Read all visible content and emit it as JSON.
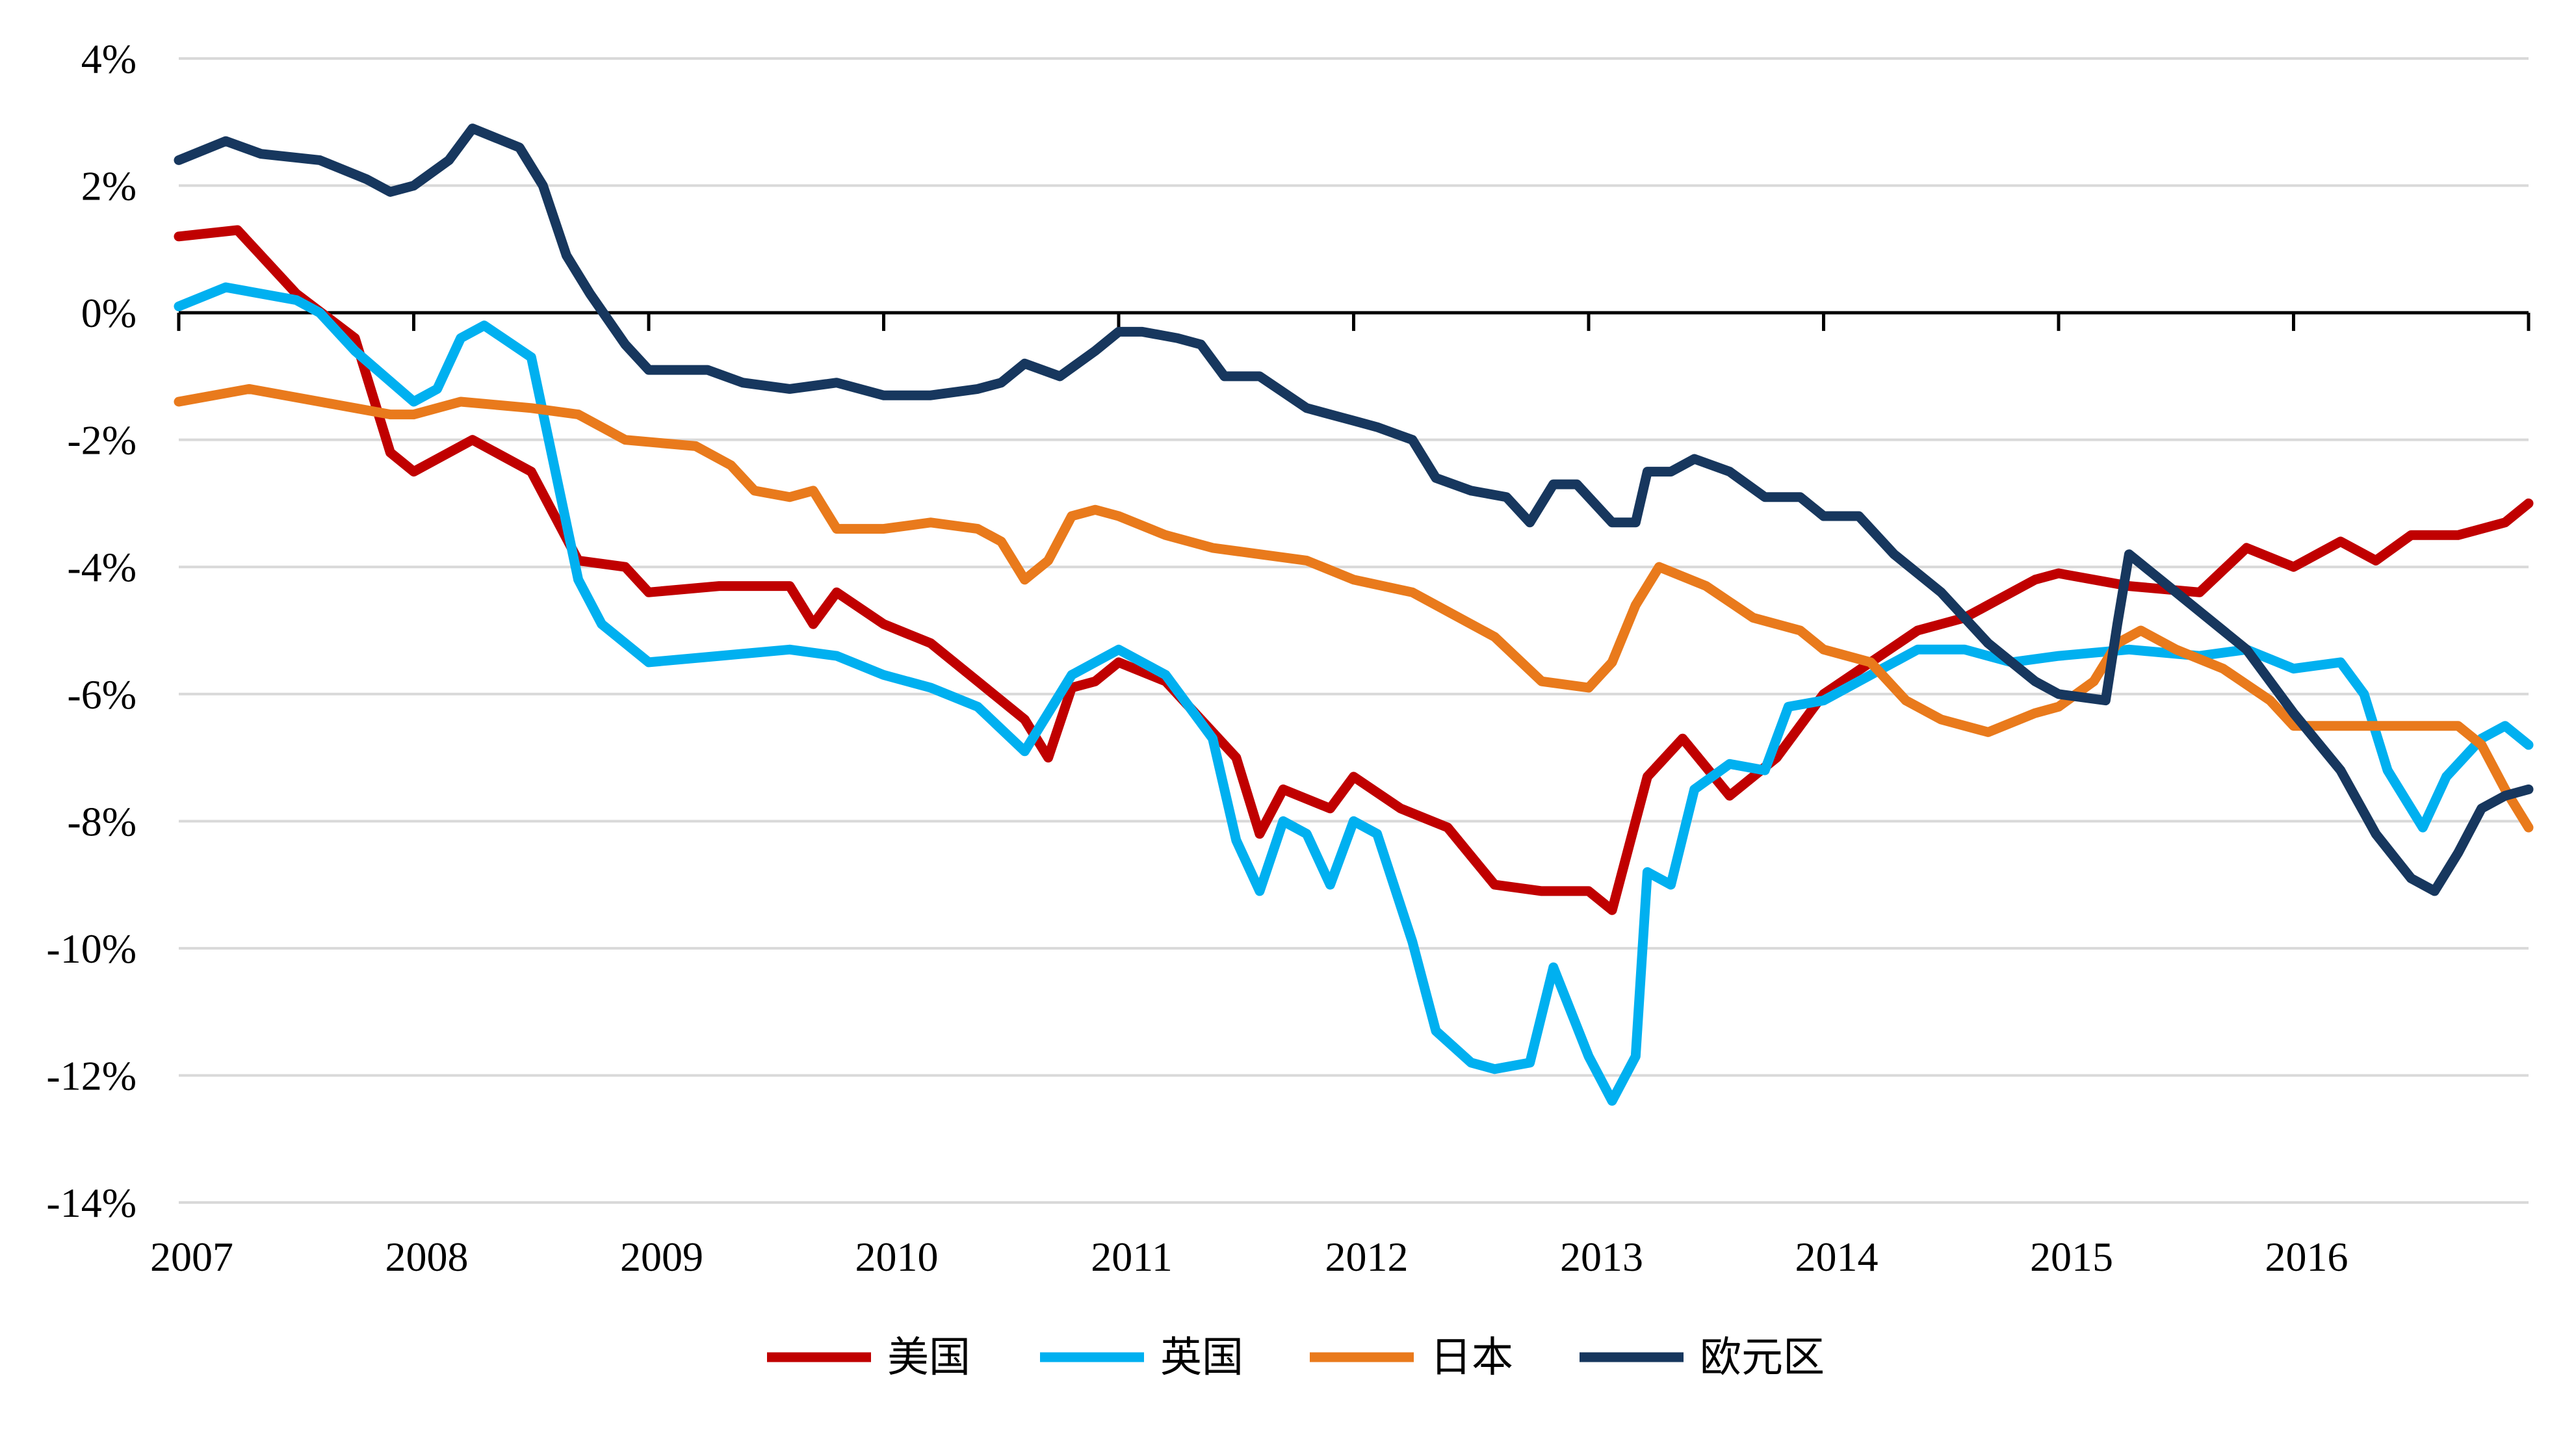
{
  "chart_data": {
    "type": "line",
    "title": "",
    "xlabel": "",
    "ylabel": "",
    "x_range": [
      2007.0,
      2017.0
    ],
    "ylim": [
      -14,
      4
    ],
    "y_ticks": [
      4,
      2,
      0,
      -2,
      -4,
      -6,
      -8,
      -10,
      -12,
      -14
    ],
    "y_tick_labels": [
      "4%",
      "2%",
      "0%",
      "-2%",
      "-4%",
      "-6%",
      "-8%",
      "-10%",
      "-12%",
      "-14%"
    ],
    "x_tick_labels": [
      "2007",
      "2008",
      "2009",
      "2010",
      "2011",
      "2012",
      "2013",
      "2014",
      "2015",
      "2016"
    ],
    "grid": true,
    "legend_position": "bottom-center",
    "series": [
      {
        "name": "美国",
        "color": "#C00000",
        "points": [
          [
            2007.0,
            1.2
          ],
          [
            2007.25,
            1.3
          ],
          [
            2007.5,
            0.3
          ],
          [
            2007.75,
            -0.4
          ],
          [
            2007.9,
            -2.2
          ],
          [
            2008.0,
            -2.5
          ],
          [
            2008.25,
            -2.0
          ],
          [
            2008.5,
            -2.5
          ],
          [
            2008.7,
            -3.9
          ],
          [
            2008.9,
            -4.0
          ],
          [
            2009.0,
            -4.4
          ],
          [
            2009.3,
            -4.3
          ],
          [
            2009.6,
            -4.3
          ],
          [
            2009.7,
            -4.9
          ],
          [
            2009.8,
            -4.4
          ],
          [
            2010.0,
            -4.9
          ],
          [
            2010.2,
            -5.2
          ],
          [
            2010.4,
            -5.8
          ],
          [
            2010.6,
            -6.4
          ],
          [
            2010.7,
            -7.0
          ],
          [
            2010.8,
            -5.9
          ],
          [
            2010.9,
            -5.8
          ],
          [
            2011.0,
            -5.5
          ],
          [
            2011.2,
            -5.8
          ],
          [
            2011.5,
            -7.0
          ],
          [
            2011.6,
            -8.2
          ],
          [
            2011.7,
            -7.5
          ],
          [
            2011.9,
            -7.8
          ],
          [
            2012.0,
            -7.3
          ],
          [
            2012.2,
            -7.8
          ],
          [
            2012.4,
            -8.1
          ],
          [
            2012.6,
            -9.0
          ],
          [
            2012.8,
            -9.1
          ],
          [
            2013.0,
            -9.1
          ],
          [
            2013.1,
            -9.4
          ],
          [
            2013.25,
            -7.3
          ],
          [
            2013.4,
            -6.7
          ],
          [
            2013.6,
            -7.6
          ],
          [
            2013.8,
            -7.0
          ],
          [
            2014.0,
            -6.0
          ],
          [
            2014.2,
            -5.5
          ],
          [
            2014.4,
            -5.0
          ],
          [
            2014.6,
            -4.8
          ],
          [
            2014.9,
            -4.2
          ],
          [
            2015.0,
            -4.1
          ],
          [
            2015.3,
            -4.3
          ],
          [
            2015.6,
            -4.4
          ],
          [
            2015.8,
            -3.7
          ],
          [
            2016.0,
            -4.0
          ],
          [
            2016.2,
            -3.6
          ],
          [
            2016.35,
            -3.9
          ],
          [
            2016.5,
            -3.5
          ],
          [
            2016.7,
            -3.5
          ],
          [
            2016.9,
            -3.3
          ],
          [
            2017.0,
            -3.0
          ]
        ]
      },
      {
        "name": "英国",
        "color": "#00B0F0",
        "points": [
          [
            2007.0,
            0.1
          ],
          [
            2007.2,
            0.4
          ],
          [
            2007.5,
            0.2
          ],
          [
            2007.6,
            0.0
          ],
          [
            2007.75,
            -0.6
          ],
          [
            2008.0,
            -1.4
          ],
          [
            2008.1,
            -1.2
          ],
          [
            2008.2,
            -0.4
          ],
          [
            2008.3,
            -0.2
          ],
          [
            2008.5,
            -0.7
          ],
          [
            2008.7,
            -4.2
          ],
          [
            2008.8,
            -4.9
          ],
          [
            2009.0,
            -5.5
          ],
          [
            2009.3,
            -5.4
          ],
          [
            2009.6,
            -5.3
          ],
          [
            2009.8,
            -5.4
          ],
          [
            2010.0,
            -5.7
          ],
          [
            2010.2,
            -5.9
          ],
          [
            2010.4,
            -6.2
          ],
          [
            2010.6,
            -6.9
          ],
          [
            2010.8,
            -5.7
          ],
          [
            2011.0,
            -5.3
          ],
          [
            2011.2,
            -5.7
          ],
          [
            2011.4,
            -6.7
          ],
          [
            2011.5,
            -8.3
          ],
          [
            2011.6,
            -9.1
          ],
          [
            2011.7,
            -8.0
          ],
          [
            2011.8,
            -8.2
          ],
          [
            2011.9,
            -9.0
          ],
          [
            2012.0,
            -8.0
          ],
          [
            2012.1,
            -8.2
          ],
          [
            2012.25,
            -9.9
          ],
          [
            2012.35,
            -11.3
          ],
          [
            2012.5,
            -11.8
          ],
          [
            2012.6,
            -11.9
          ],
          [
            2012.75,
            -11.8
          ],
          [
            2012.85,
            -10.3
          ],
          [
            2013.0,
            -11.7
          ],
          [
            2013.1,
            -12.4
          ],
          [
            2013.2,
            -11.7
          ],
          [
            2013.25,
            -8.8
          ],
          [
            2013.35,
            -9.0
          ],
          [
            2013.45,
            -7.5
          ],
          [
            2013.6,
            -7.1
          ],
          [
            2013.75,
            -7.2
          ],
          [
            2013.85,
            -6.2
          ],
          [
            2014.0,
            -6.1
          ],
          [
            2014.2,
            -5.7
          ],
          [
            2014.4,
            -5.3
          ],
          [
            2014.6,
            -5.3
          ],
          [
            2014.8,
            -5.5
          ],
          [
            2015.0,
            -5.4
          ],
          [
            2015.3,
            -5.3
          ],
          [
            2015.6,
            -5.4
          ],
          [
            2015.8,
            -5.3
          ],
          [
            2016.0,
            -5.6
          ],
          [
            2016.2,
            -5.5
          ],
          [
            2016.3,
            -6.0
          ],
          [
            2016.4,
            -7.2
          ],
          [
            2016.55,
            -8.1
          ],
          [
            2016.65,
            -7.3
          ],
          [
            2016.8,
            -6.7
          ],
          [
            2016.9,
            -6.5
          ],
          [
            2017.0,
            -6.8
          ]
        ]
      },
      {
        "name": "日本",
        "color": "#E97A1C",
        "points": [
          [
            2007.0,
            -1.4
          ],
          [
            2007.3,
            -1.2
          ],
          [
            2007.6,
            -1.4
          ],
          [
            2007.9,
            -1.6
          ],
          [
            2008.0,
            -1.6
          ],
          [
            2008.2,
            -1.4
          ],
          [
            2008.5,
            -1.5
          ],
          [
            2008.7,
            -1.6
          ],
          [
            2008.9,
            -2.0
          ],
          [
            2009.2,
            -2.1
          ],
          [
            2009.35,
            -2.4
          ],
          [
            2009.45,
            -2.8
          ],
          [
            2009.6,
            -2.9
          ],
          [
            2009.7,
            -2.8
          ],
          [
            2009.8,
            -3.4
          ],
          [
            2010.0,
            -3.4
          ],
          [
            2010.2,
            -3.3
          ],
          [
            2010.4,
            -3.4
          ],
          [
            2010.5,
            -3.6
          ],
          [
            2010.6,
            -4.2
          ],
          [
            2010.7,
            -3.9
          ],
          [
            2010.8,
            -3.2
          ],
          [
            2010.9,
            -3.1
          ],
          [
            2011.0,
            -3.2
          ],
          [
            2011.2,
            -3.5
          ],
          [
            2011.4,
            -3.7
          ],
          [
            2011.6,
            -3.8
          ],
          [
            2011.8,
            -3.9
          ],
          [
            2012.0,
            -4.2
          ],
          [
            2012.25,
            -4.4
          ],
          [
            2012.4,
            -4.7
          ],
          [
            2012.6,
            -5.1
          ],
          [
            2012.8,
            -5.8
          ],
          [
            2013.0,
            -5.9
          ],
          [
            2013.1,
            -5.5
          ],
          [
            2013.2,
            -4.6
          ],
          [
            2013.3,
            -4.0
          ],
          [
            2013.5,
            -4.3
          ],
          [
            2013.7,
            -4.8
          ],
          [
            2013.9,
            -5.0
          ],
          [
            2014.0,
            -5.3
          ],
          [
            2014.2,
            -5.5
          ],
          [
            2014.35,
            -6.1
          ],
          [
            2014.5,
            -6.4
          ],
          [
            2014.7,
            -6.6
          ],
          [
            2014.9,
            -6.3
          ],
          [
            2015.0,
            -6.2
          ],
          [
            2015.15,
            -5.8
          ],
          [
            2015.25,
            -5.2
          ],
          [
            2015.35,
            -5.0
          ],
          [
            2015.5,
            -5.3
          ],
          [
            2015.7,
            -5.6
          ],
          [
            2015.9,
            -6.1
          ],
          [
            2016.0,
            -6.5
          ],
          [
            2016.2,
            -6.5
          ],
          [
            2016.5,
            -6.5
          ],
          [
            2016.7,
            -6.5
          ],
          [
            2016.8,
            -6.8
          ],
          [
            2016.9,
            -7.5
          ],
          [
            2017.0,
            -8.1
          ]
        ]
      },
      {
        "name": "欧元区",
        "color": "#17375E",
        "points": [
          [
            2007.0,
            2.4
          ],
          [
            2007.2,
            2.7
          ],
          [
            2007.35,
            2.5
          ],
          [
            2007.6,
            2.4
          ],
          [
            2007.8,
            2.1
          ],
          [
            2007.9,
            1.9
          ],
          [
            2008.0,
            2.0
          ],
          [
            2008.15,
            2.4
          ],
          [
            2008.25,
            2.9
          ],
          [
            2008.45,
            2.6
          ],
          [
            2008.55,
            2.0
          ],
          [
            2008.65,
            0.9
          ],
          [
            2008.75,
            0.3
          ],
          [
            2008.9,
            -0.5
          ],
          [
            2009.0,
            -0.9
          ],
          [
            2009.25,
            -0.9
          ],
          [
            2009.4,
            -1.1
          ],
          [
            2009.6,
            -1.2
          ],
          [
            2009.8,
            -1.1
          ],
          [
            2010.0,
            -1.3
          ],
          [
            2010.2,
            -1.3
          ],
          [
            2010.4,
            -1.2
          ],
          [
            2010.5,
            -1.1
          ],
          [
            2010.6,
            -0.8
          ],
          [
            2010.75,
            -1.0
          ],
          [
            2010.9,
            -0.6
          ],
          [
            2011.0,
            -0.3
          ],
          [
            2011.1,
            -0.3
          ],
          [
            2011.25,
            -0.4
          ],
          [
            2011.35,
            -0.5
          ],
          [
            2011.45,
            -1.0
          ],
          [
            2011.6,
            -1.0
          ],
          [
            2011.8,
            -1.5
          ],
          [
            2012.0,
            -1.7
          ],
          [
            2012.1,
            -1.8
          ],
          [
            2012.25,
            -2.0
          ],
          [
            2012.35,
            -2.6
          ],
          [
            2012.5,
            -2.8
          ],
          [
            2012.65,
            -2.9
          ],
          [
            2012.75,
            -3.3
          ],
          [
            2012.85,
            -2.7
          ],
          [
            2012.95,
            -2.7
          ],
          [
            2013.1,
            -3.3
          ],
          [
            2013.2,
            -3.3
          ],
          [
            2013.25,
            -2.5
          ],
          [
            2013.35,
            -2.5
          ],
          [
            2013.45,
            -2.3
          ],
          [
            2013.6,
            -2.5
          ],
          [
            2013.75,
            -2.9
          ],
          [
            2013.9,
            -2.9
          ],
          [
            2014.0,
            -3.2
          ],
          [
            2014.15,
            -3.2
          ],
          [
            2014.3,
            -3.8
          ],
          [
            2014.5,
            -4.4
          ],
          [
            2014.7,
            -5.2
          ],
          [
            2014.9,
            -5.8
          ],
          [
            2015.0,
            -6.0
          ],
          [
            2015.2,
            -6.1
          ],
          [
            2015.25,
            -4.9
          ],
          [
            2015.3,
            -3.8
          ],
          [
            2015.5,
            -4.4
          ],
          [
            2015.7,
            -5.0
          ],
          [
            2015.8,
            -5.3
          ],
          [
            2016.0,
            -6.3
          ],
          [
            2016.2,
            -7.2
          ],
          [
            2016.35,
            -8.2
          ],
          [
            2016.5,
            -8.9
          ],
          [
            2016.6,
            -9.1
          ],
          [
            2016.7,
            -8.5
          ],
          [
            2016.8,
            -7.8
          ],
          [
            2016.9,
            -7.6
          ],
          [
            2017.0,
            -7.5
          ]
        ]
      }
    ]
  }
}
